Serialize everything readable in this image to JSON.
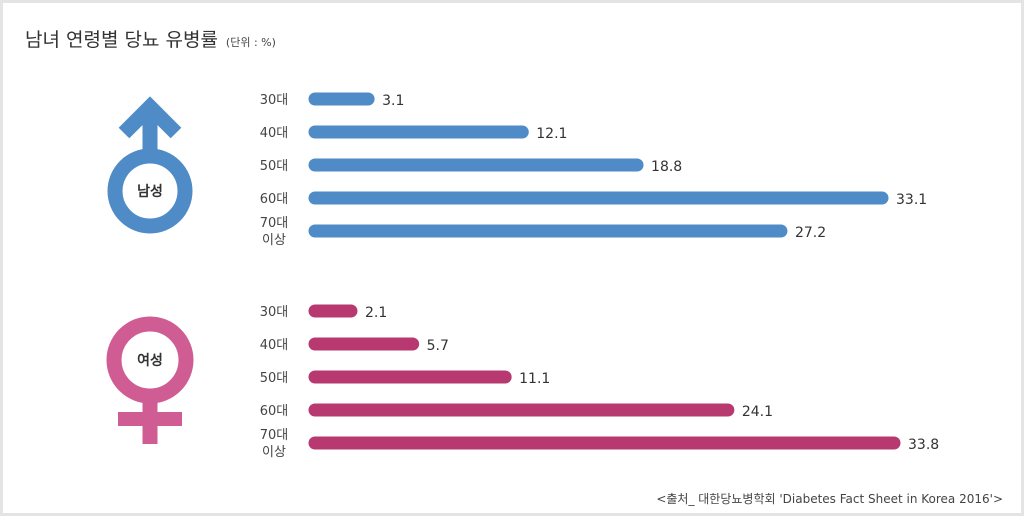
{
  "title": "남녀 연령별 당뇨 유병률",
  "unit": "(단위 : %)",
  "source": "<출처_ 대한당뇨병학회 'Diabetes Fact Sheet in Korea 2016'>",
  "colors": {
    "male": "#4f8bc6",
    "female": "#b7396f",
    "female_symbol": "#cf5d93"
  },
  "chart_data": [
    {
      "type": "bar",
      "orientation": "horizontal",
      "group_label": "남성",
      "symbol": "male-symbol-icon",
      "color": "#4f8bc6",
      "categories": [
        "30대",
        "40대",
        "50대",
        "60대",
        "70대 이상"
      ],
      "values": [
        3.1,
        12.1,
        18.8,
        33.1,
        27.2
      ],
      "value_labels": [
        "3.1",
        "12.1",
        "18.8",
        "33.1",
        "27.2"
      ],
      "xlim": [
        0,
        33.8
      ],
      "grid": false
    },
    {
      "type": "bar",
      "orientation": "horizontal",
      "group_label": "여성",
      "symbol": "female-symbol-icon",
      "color": "#b7396f",
      "categories": [
        "30대",
        "40대",
        "50대",
        "60대",
        "70대 이상"
      ],
      "values": [
        2.1,
        5.7,
        11.1,
        24.1,
        33.8
      ],
      "value_labels": [
        "2.1",
        "5.7",
        "11.1",
        "24.1",
        "33.8"
      ],
      "xlim": [
        0,
        33.8
      ],
      "grid": false
    }
  ]
}
